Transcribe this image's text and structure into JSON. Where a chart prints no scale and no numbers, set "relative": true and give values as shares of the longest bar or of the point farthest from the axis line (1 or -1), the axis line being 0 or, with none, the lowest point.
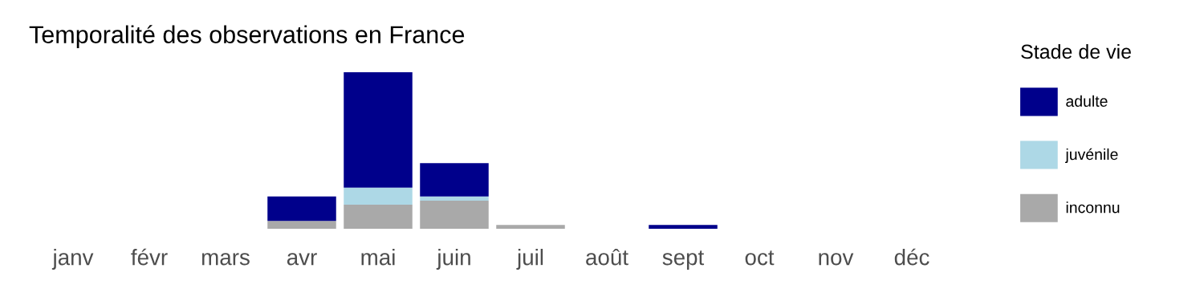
{
  "chart_data": {
    "type": "bar",
    "title": "Temporalité des observations en France",
    "legend_title": "Stade de vie",
    "legend": "right",
    "relative": true,
    "stacked": true,
    "grid": false,
    "categories": [
      "janv",
      "févr",
      "mars",
      "avr",
      "mai",
      "juin",
      "juil",
      "août",
      "sept",
      "oct",
      "nov",
      "déc"
    ],
    "series": [
      {
        "name": "inconnu",
        "color": "#a9a9a9",
        "values": [
          0,
          0,
          0,
          0.05,
          0.154,
          0.18,
          0.024,
          0,
          0,
          0,
          0,
          0
        ]
      },
      {
        "name": "juvénile",
        "color": "#add8e6",
        "values": [
          0,
          0,
          0,
          0,
          0.109,
          0.026,
          0,
          0,
          0,
          0,
          0,
          0
        ]
      },
      {
        "name": "adulte",
        "color": "#00008b",
        "values": [
          0,
          0,
          0,
          0.156,
          0.737,
          0.213,
          0,
          0,
          0.024,
          0,
          0,
          0
        ]
      }
    ]
  }
}
